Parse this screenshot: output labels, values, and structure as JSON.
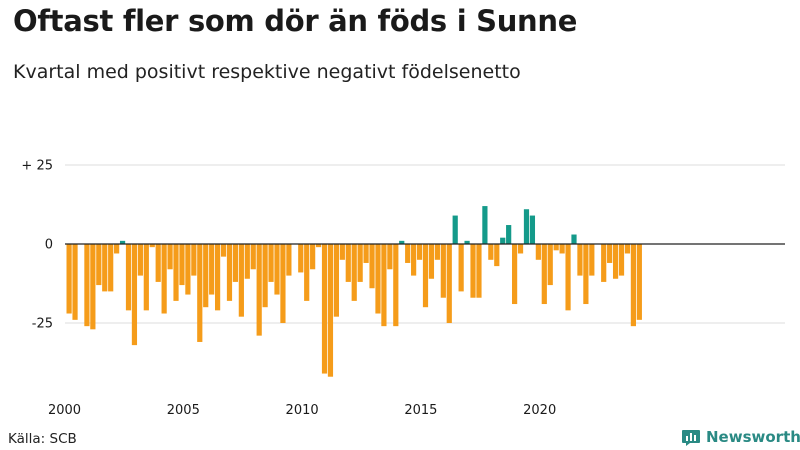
{
  "title": "Oftast fler som dör än föds i Sunne",
  "subtitle": "Kvartal med positivt respektive negativt födelsenetto",
  "source": "Källa: SCB",
  "brand": "Newsworthy",
  "colors": {
    "negative": "#f59c1a",
    "positive": "#149a8a",
    "brand": "#2a8a84",
    "grid": "#dddddd"
  },
  "chart_data": {
    "type": "bar",
    "x_unit": "quarter",
    "start": "2000 Q1",
    "ylim": [
      -46,
      30
    ],
    "yticks": [
      {
        "value": 25,
        "label": "+ 25"
      },
      {
        "value": 0,
        "label": "0"
      },
      {
        "value": -25,
        "label": "-25"
      }
    ],
    "xticks": [
      "2000",
      "2005",
      "2010",
      "2015",
      "2020"
    ],
    "grid": true,
    "values": [
      -22,
      -24,
      0,
      -26,
      -27,
      -13,
      -15,
      -15,
      -3,
      1,
      -21,
      -32,
      -10,
      -21,
      -1,
      -12,
      -22,
      -8,
      -18,
      -13,
      -16,
      -10,
      -31,
      -20,
      -16,
      -21,
      -4,
      -18,
      -12,
      -23,
      -11,
      -8,
      -29,
      -20,
      -12,
      -16,
      -25,
      -10,
      0,
      -9,
      -18,
      -8,
      -1,
      -41,
      -42,
      -23,
      -5,
      -12,
      -18,
      -12,
      -6,
      -14,
      -22,
      -26,
      -8,
      -26,
      1,
      -6,
      -10,
      -5,
      -20,
      -11,
      -5,
      -17,
      -25,
      9,
      -15,
      1,
      -17,
      -17,
      12,
      -5,
      -7,
      2,
      6,
      -19,
      -3,
      11,
      9,
      -5,
      -19,
      -13,
      -2,
      -3,
      -21,
      3,
      -10,
      -19,
      -10,
      0,
      -12,
      -6,
      -11,
      -10,
      -3,
      -26,
      -24
    ]
  }
}
